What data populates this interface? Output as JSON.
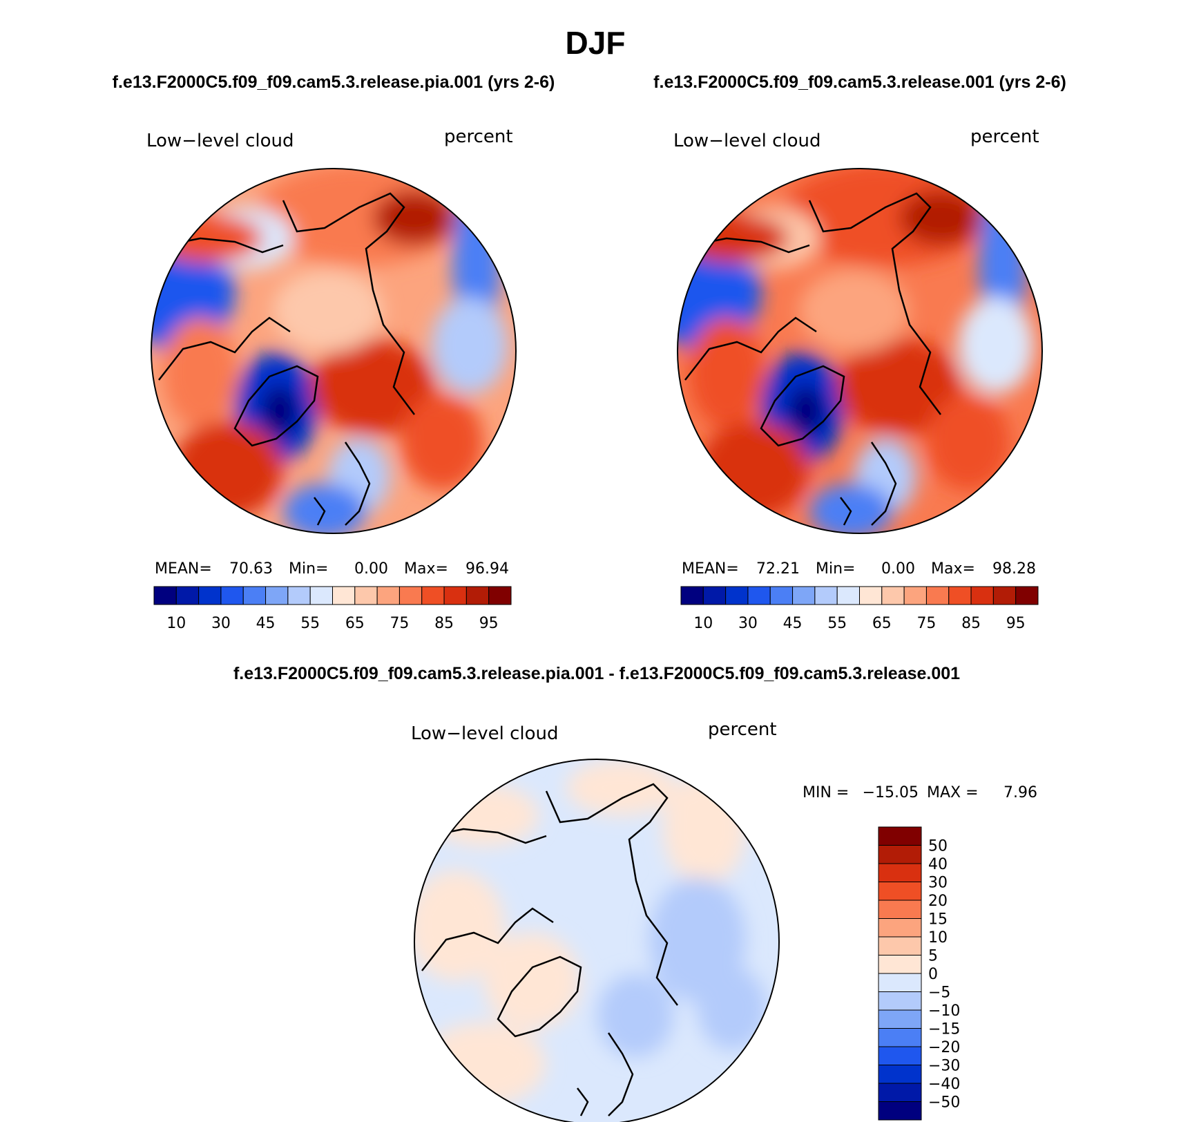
{
  "title": "DJF",
  "colors": {
    "abs_scale": [
      "#00007f",
      "#0019a8",
      "#0033cc",
      "#1f57ee",
      "#4b7ff5",
      "#7ea6f7",
      "#b3cbfb",
      "#dbe8fd",
      "#ffe6d5",
      "#fdc8ab",
      "#fca47e",
      "#f97a50",
      "#ef4f25",
      "#d93010",
      "#b21c06",
      "#800000"
    ],
    "diff_scale": [
      "#00007f",
      "#0019a8",
      "#0033cc",
      "#1f57ee",
      "#4b7ff5",
      "#7ea6f7",
      "#b3cbfb",
      "#dbe8fd",
      "#ffe6d5",
      "#fdc8ab",
      "#fca47e",
      "#f97a50",
      "#ef4f25",
      "#d93010",
      "#b21c06",
      "#800000"
    ],
    "coast": "#000000"
  },
  "chart_data": [
    {
      "type": "heatmap",
      "projection": "polar stereographic (north pole)",
      "case_title": "f.e13.F2000C5.f09_f09.cam5.3.release.pia.001 (yrs 2-6)",
      "variable": "Low−level cloud",
      "units": "percent",
      "stats": {
        "mean_label": "MEAN=",
        "mean": "70.63",
        "min_label": "Min=",
        "min": "0.00",
        "max_label": "Max=",
        "max": "96.94"
      },
      "colorbar": {
        "orientation": "horizontal",
        "tick_labels": [
          "10",
          "30",
          "45",
          "55",
          "65",
          "75",
          "85",
          "95"
        ],
        "levels": [
          5,
          10,
          20,
          30,
          40,
          45,
          50,
          55,
          60,
          65,
          70,
          75,
          80,
          85,
          90,
          95
        ]
      },
      "regions": [
        {
          "lon": 0,
          "lat": 75,
          "value": 78
        },
        {
          "lon": 30,
          "lat": 72,
          "value": 82
        },
        {
          "lon": 60,
          "lat": 72,
          "value": 85
        },
        {
          "lon": 120,
          "lat": 70,
          "value": 70
        },
        {
          "lon": 180,
          "lat": 75,
          "value": 75
        },
        {
          "lon": -150,
          "lat": 68,
          "value": 60
        },
        {
          "lon": -100,
          "lat": 68,
          "value": 35
        },
        {
          "lon": -40,
          "lat": 72,
          "value": 15
        },
        {
          "lon": -20,
          "lat": 62,
          "value": 88
        },
        {
          "lon": 120,
          "lat": 60,
          "value": 50
        }
      ]
    },
    {
      "type": "heatmap",
      "projection": "polar stereographic (north pole)",
      "case_title": "f.e13.F2000C5.f09_f09.cam5.3.release.001 (yrs 2-6)",
      "variable": "Low−level cloud",
      "units": "percent",
      "stats": {
        "mean_label": "MEAN=",
        "mean": "72.21",
        "min_label": "Min=",
        "min": "0.00",
        "max_label": "Max=",
        "max": "98.28"
      },
      "colorbar": {
        "orientation": "horizontal",
        "tick_labels": [
          "10",
          "30",
          "45",
          "55",
          "65",
          "75",
          "85",
          "95"
        ],
        "levels": [
          5,
          10,
          20,
          30,
          40,
          45,
          50,
          55,
          60,
          65,
          70,
          75,
          80,
          85,
          90,
          95
        ]
      },
      "regions": [
        {
          "lon": 0,
          "lat": 75,
          "value": 80
        },
        {
          "lon": 30,
          "lat": 72,
          "value": 84
        },
        {
          "lon": 60,
          "lat": 72,
          "value": 87
        },
        {
          "lon": 120,
          "lat": 70,
          "value": 72
        },
        {
          "lon": 180,
          "lat": 75,
          "value": 78
        },
        {
          "lon": -150,
          "lat": 68,
          "value": 62
        },
        {
          "lon": -100,
          "lat": 68,
          "value": 38
        },
        {
          "lon": -40,
          "lat": 72,
          "value": 18
        },
        {
          "lon": -20,
          "lat": 62,
          "value": 90
        },
        {
          "lon": 120,
          "lat": 60,
          "value": 52
        }
      ]
    },
    {
      "type": "heatmap",
      "projection": "polar stereographic (north pole)",
      "case_title": "f.e13.F2000C5.f09_f09.cam5.3.release.pia.001 - f.e13.F2000C5.f09_f09.cam5.3.release.001",
      "variable": "Low−level cloud",
      "units": "percent",
      "stats": {
        "min_label": "MIN =",
        "min": "−15.05",
        "max_label": "MAX =",
        "max": "7.96"
      },
      "colorbar": {
        "orientation": "vertical",
        "tick_labels": [
          "50",
          "40",
          "30",
          "20",
          "15",
          "10",
          "5",
          "0",
          "−5",
          "−10",
          "−15",
          "−20",
          "−30",
          "−40",
          "−50"
        ],
        "levels": [
          -50,
          -40,
          -30,
          -20,
          -15,
          -10,
          -5,
          0,
          5,
          10,
          15,
          20,
          30,
          40,
          50
        ]
      },
      "regions": [
        {
          "lon": 0,
          "lat": 80,
          "value": -3
        },
        {
          "lon": 60,
          "lat": 72,
          "value": -6
        },
        {
          "lon": 100,
          "lat": 65,
          "value": -8
        },
        {
          "lon": 180,
          "lat": 70,
          "value": -3
        },
        {
          "lon": -120,
          "lat": 65,
          "value": 2
        },
        {
          "lon": -40,
          "lat": 70,
          "value": 2
        },
        {
          "lon": -10,
          "lat": 60,
          "value": 3
        }
      ]
    }
  ]
}
